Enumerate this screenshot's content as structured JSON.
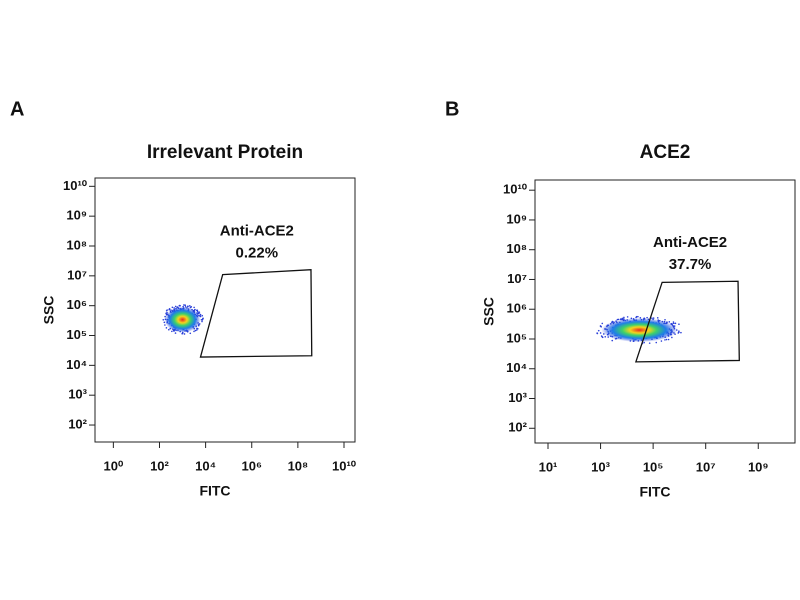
{
  "chart_data": [
    {
      "type": "scatter",
      "panel": "A",
      "title": "Irrelevant Protein",
      "xlabel": "FITC",
      "ylabel": "SSC",
      "xscale": "log",
      "yscale": "log",
      "xlim": [
        0.16,
        30000000000
      ],
      "ylim": [
        27,
        19000000000
      ],
      "xticks": [
        {
          "value": 1,
          "label": "10⁰"
        },
        {
          "value": 100,
          "label": "10²"
        },
        {
          "value": 10000,
          "label": "10⁴"
        },
        {
          "value": 1000000,
          "label": "10⁶"
        },
        {
          "value": 100000000,
          "label": "10⁸"
        },
        {
          "value": 10000000000,
          "label": "10¹⁰"
        }
      ],
      "yticks": [
        {
          "value": 100,
          "label": "10²"
        },
        {
          "value": 1000,
          "label": "10³"
        },
        {
          "value": 10000,
          "label": "10⁴"
        },
        {
          "value": 100000,
          "label": "10⁵"
        },
        {
          "value": 1000000,
          "label": "10⁶"
        },
        {
          "value": 10000000,
          "label": "10⁷"
        },
        {
          "value": 100000000,
          "label": "10⁸"
        },
        {
          "value": 1000000000,
          "label": "10⁹"
        },
        {
          "value": 10000000000,
          "label": "10¹⁰"
        }
      ],
      "clusters": {
        "x": [
          1000
        ],
        "y": [
          340000
        ]
      },
      "gate": {
        "name": "Anti-ACE2",
        "value": 0.22,
        "value_label": "0.22%",
        "x": [
          6000,
          55000,
          370000000,
          400000000
        ],
        "y": [
          19000,
          11000000,
          16000000,
          21000
        ]
      }
    },
    {
      "type": "scatter",
      "panel": "B",
      "title": "ACE2",
      "xlabel": "FITC",
      "ylabel": "SSC",
      "xscale": "log",
      "yscale": "log",
      "xlim": [
        3.2,
        25000000000
      ],
      "ylim": [
        32,
        22000000000
      ],
      "xticks": [
        {
          "value": 10,
          "label": "10¹"
        },
        {
          "value": 1000,
          "label": "10³"
        },
        {
          "value": 100000,
          "label": "10⁵"
        },
        {
          "value": 10000000,
          "label": "10⁷"
        },
        {
          "value": 1000000000,
          "label": "10⁹"
        }
      ],
      "yticks": [
        {
          "value": 100,
          "label": "10²"
        },
        {
          "value": 1000,
          "label": "10³"
        },
        {
          "value": 10000,
          "label": "10⁴"
        },
        {
          "value": 100000,
          "label": "10⁵"
        },
        {
          "value": 1000000,
          "label": "10⁶"
        },
        {
          "value": 10000000,
          "label": "10⁷"
        },
        {
          "value": 100000000,
          "label": "10⁸"
        },
        {
          "value": 1000000000,
          "label": "10⁹"
        },
        {
          "value": 10000000000,
          "label": "10¹⁰"
        }
      ],
      "clusters": {
        "x": [
          30000
        ],
        "y": [
          200000
        ]
      },
      "gate": {
        "name": "Anti-ACE2",
        "value": 37.7,
        "value_label": "37.7%",
        "x": [
          22000,
          220000,
          170000000,
          190000000
        ],
        "y": [
          17000,
          8000000,
          8700000,
          19000
        ]
      }
    }
  ]
}
